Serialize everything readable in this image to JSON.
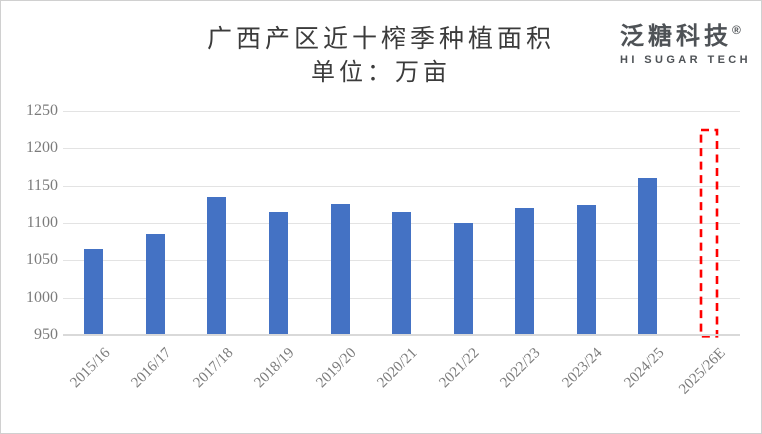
{
  "header": {
    "title": "广西产区近十榨季种植面积",
    "subtitle": "单位：万亩"
  },
  "logo": {
    "brand": "泛糖科技",
    "registered": "®",
    "tagline": "HI SUGAR TECH"
  },
  "chart_data": {
    "type": "bar",
    "title": "广西产区近十榨季种植面积",
    "unit_label": "单位：万亩",
    "categories": [
      "2015/16",
      "2016/17",
      "2017/18",
      "2018/19",
      "2019/20",
      "2020/21",
      "2021/22",
      "2022/23",
      "2023/24",
      "2024/25",
      "2025/26E"
    ],
    "values": [
      1065,
      1085,
      1135,
      1115,
      1125,
      1115,
      1100,
      1120,
      1124,
      1160,
      1225
    ],
    "forecast_indices": [
      10
    ],
    "ylim": [
      950,
      1250
    ],
    "ytick_step": 50,
    "yticks": [
      950,
      1000,
      1050,
      1100,
      1150,
      1200,
      1250
    ],
    "xlabel": "",
    "ylabel": "",
    "grid": "horizontal",
    "legend": "none",
    "bar_color": "#4472C4",
    "forecast_outline_color": "#FF0000",
    "grid_color": "#E3E3E3",
    "axis_line_color": "#D9D9D9",
    "tick_label_color": "#7B7B7B"
  }
}
